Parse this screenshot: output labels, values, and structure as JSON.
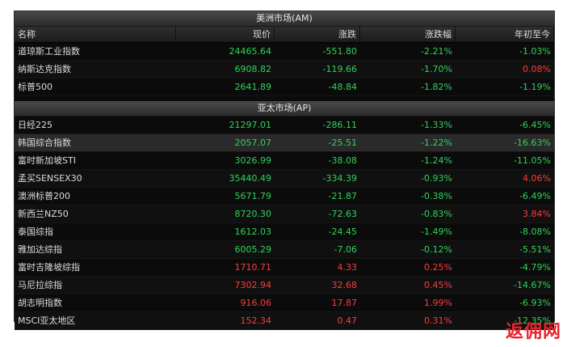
{
  "americas": {
    "title": "美洲市场(AM)",
    "columns": [
      "名称",
      "现价",
      "涨跌",
      "涨跌幅",
      "年初至今"
    ],
    "rows": [
      {
        "name": "道琼斯工业指数",
        "price": "24465.64",
        "change": "-551.80",
        "pct": "-2.21%",
        "ytd": "-1.03%"
      },
      {
        "name": "纳斯达克指数",
        "price": "6908.82",
        "change": "-119.66",
        "pct": "-1.70%",
        "ytd": "0.08%"
      },
      {
        "name": "标普500",
        "price": "2641.89",
        "change": "-48.84",
        "pct": "-1.82%",
        "ytd": "-1.19%"
      }
    ]
  },
  "asia_pacific": {
    "title": "亚太市场(AP)",
    "rows": [
      {
        "name": "日经225",
        "price": "21297.01",
        "change": "-286.11",
        "pct": "-1.33%",
        "ytd": "-6.45%"
      },
      {
        "name": "韩国综合指数",
        "price": "2057.07",
        "change": "-25.51",
        "pct": "-1.22%",
        "ytd": "-16.63%"
      },
      {
        "name": "富时新加坡STI",
        "price": "3026.99",
        "change": "-38.08",
        "pct": "-1.24%",
        "ytd": "-11.05%"
      },
      {
        "name": "孟买SENSEX30",
        "price": "35440.49",
        "change": "-334.39",
        "pct": "-0.93%",
        "ytd": "4.06%"
      },
      {
        "name": "澳洲标普200",
        "price": "5671.79",
        "change": "-21.87",
        "pct": "-0.38%",
        "ytd": "-6.49%"
      },
      {
        "name": "新西兰NZ50",
        "price": "8720.30",
        "change": "-72.63",
        "pct": "-0.83%",
        "ytd": "3.84%"
      },
      {
        "name": "泰国综指",
        "price": "1612.03",
        "change": "-24.45",
        "pct": "-1.49%",
        "ytd": "-8.08%"
      },
      {
        "name": "雅加达综指",
        "price": "6005.29",
        "change": "-7.06",
        "pct": "-0.12%",
        "ytd": "-5.51%"
      },
      {
        "name": "富时吉隆坡综指",
        "price": "1710.71",
        "change": "4.33",
        "pct": "0.25%",
        "ytd": "-4.79%"
      },
      {
        "name": "马尼拉综指",
        "price": "7302.94",
        "change": "32.68",
        "pct": "0.45%",
        "ytd": "-14.67%"
      },
      {
        "name": "胡志明指数",
        "price": "916.06",
        "change": "17.87",
        "pct": "1.99%",
        "ytd": "-6.93%"
      },
      {
        "name": "MSCI亚太地区",
        "price": "152.34",
        "change": "0.47",
        "pct": "0.31%",
        "ytd": "-12.35%"
      }
    ]
  },
  "colors": {
    "up": "#ff3b3b",
    "down": "#2fd35a",
    "background": "#0b0b0b"
  },
  "watermark": "返佣网"
}
